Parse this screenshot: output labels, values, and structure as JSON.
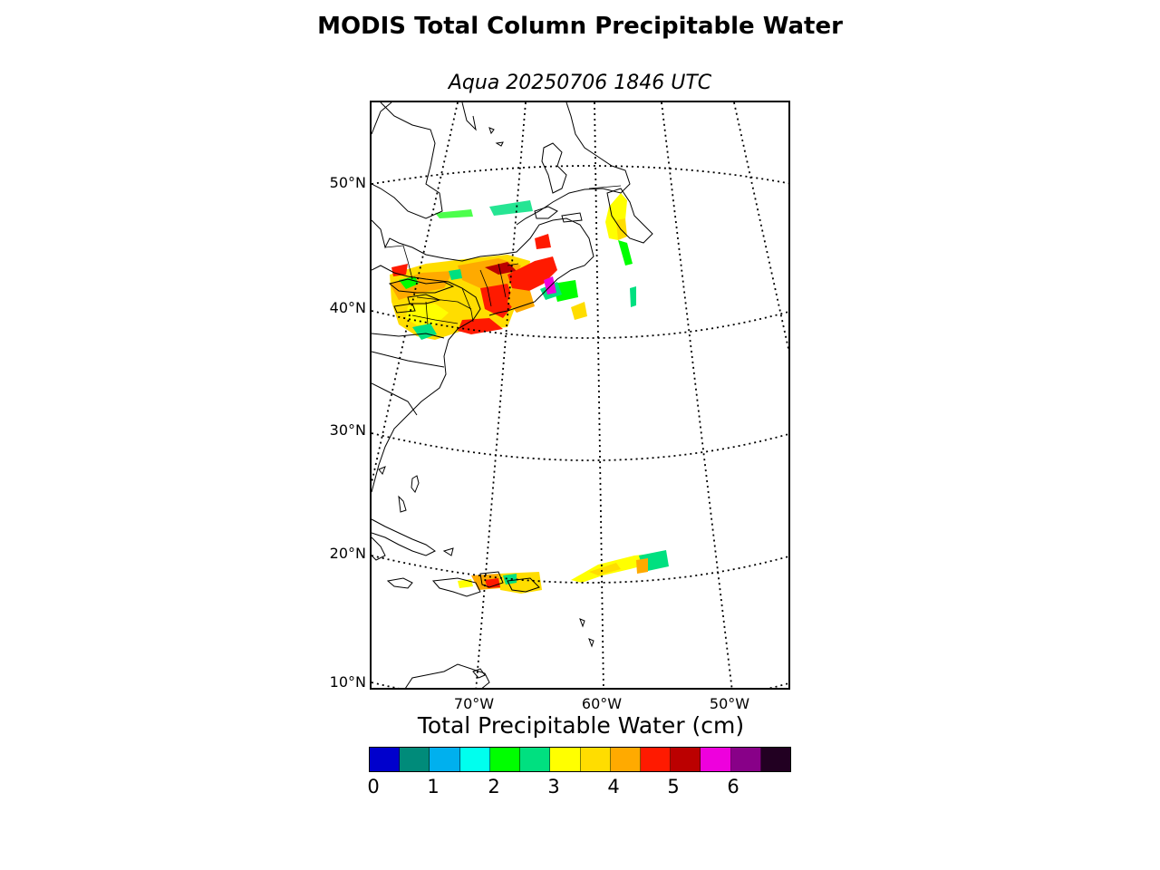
{
  "title": "MODIS Total Column Precipitable Water",
  "subtitle": "Aqua 20250706 1846 UTC",
  "lat_labels": [
    "50°N",
    "40°N",
    "30°N",
    "20°N",
    "10°N"
  ],
  "lon_labels": [
    "70°W",
    "60°W",
    "50°W"
  ],
  "colorbar": {
    "title": "Total Precipitable Water (cm)",
    "ticks": [
      "0",
      "1",
      "2",
      "3",
      "4",
      "5",
      "6"
    ],
    "colors": [
      "#0000cc",
      "#008b7a",
      "#00b0ee",
      "#00ffee",
      "#00ff00",
      "#00e080",
      "#ffff00",
      "#ffdd00",
      "#ffaa00",
      "#ff1a00",
      "#bb0000",
      "#ee00dd",
      "#880088",
      "#220022"
    ]
  }
}
